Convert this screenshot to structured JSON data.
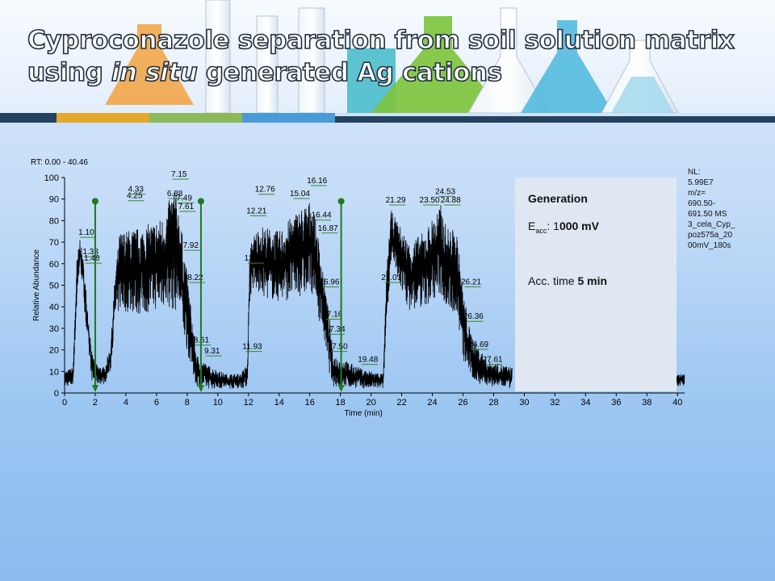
{
  "slide": {
    "title_line1": "Cyproconazole separation from soil solution matrix",
    "title_line2_pre": "using ",
    "title_line2_em": "in situ",
    "title_line2_post": " generated Ag cations"
  },
  "colors": {
    "accent_bars": [
      "#24425f",
      "#e4a82a",
      "#8cb85c",
      "#4a9ad8",
      "#24425f"
    ],
    "trace": "#000000",
    "markers": "#1d7a1d",
    "peak_label_tick": "#2e8b2e"
  },
  "info": {
    "line1": "Generation",
    "line2_pre": "E",
    "line2_sub": "acc",
    "line2_mid": ": 1",
    "line2_bold": "000 mV",
    "line3_pre": "Acc. time ",
    "line3_bold": "5 min"
  },
  "nl_note": "NL:\n5.99E7\nm/z=\n690.50-\n691.50 MS\n3_cela_Cyp_\npoz575a_20\n00mV_180s",
  "chart_data": {
    "type": "line",
    "rt_range_label": "RT:  0.00 - 40.46",
    "xlabel": "Time (min)",
    "ylabel": "Relative Abundance",
    "xlim": [
      0,
      40.46
    ],
    "ylim": [
      0,
      100
    ],
    "xticks": [
      0,
      2,
      4,
      6,
      8,
      10,
      12,
      14,
      16,
      18,
      20,
      22,
      24,
      26,
      28,
      30,
      32,
      34,
      36,
      38,
      40
    ],
    "yticks": [
      0,
      10,
      20,
      30,
      40,
      50,
      60,
      70,
      80,
      90,
      100
    ],
    "data_range": [
      0,
      29.2
    ],
    "tail_range": [
      39.3,
      40.46
    ],
    "envelope": [
      [
        0.0,
        3,
        10
      ],
      [
        0.55,
        3,
        12
      ],
      [
        0.8,
        40,
        62
      ],
      [
        1.0,
        60,
        72
      ],
      [
        1.2,
        48,
        63
      ],
      [
        1.45,
        25,
        45
      ],
      [
        1.8,
        5,
        18
      ],
      [
        2.1,
        4,
        13
      ],
      [
        2.6,
        4,
        12
      ],
      [
        3.0,
        10,
        22
      ],
      [
        3.3,
        34,
        56
      ],
      [
        3.6,
        38,
        75
      ],
      [
        5.0,
        36,
        77
      ],
      [
        6.5,
        40,
        82
      ],
      [
        7.15,
        38,
        97
      ],
      [
        7.49,
        38,
        85
      ],
      [
        7.61,
        30,
        78
      ],
      [
        7.92,
        22,
        60
      ],
      [
        8.22,
        12,
        42
      ],
      [
        8.61,
        3,
        18
      ],
      [
        9.31,
        2,
        13
      ],
      [
        10.5,
        2,
        9
      ],
      [
        11.5,
        2,
        9
      ],
      [
        11.93,
        3,
        14
      ],
      [
        12.07,
        40,
        62
      ],
      [
        12.21,
        48,
        72
      ],
      [
        12.76,
        45,
        78
      ],
      [
        14.0,
        42,
        75
      ],
      [
        15.04,
        44,
        84
      ],
      [
        16.16,
        46,
        90
      ],
      [
        16.44,
        38,
        78
      ],
      [
        16.87,
        28,
        58
      ],
      [
        17.16,
        12,
        42
      ],
      [
        17.34,
        8,
        32
      ],
      [
        17.5,
        3,
        18
      ],
      [
        19.48,
        2,
        11
      ],
      [
        20.8,
        2,
        9
      ],
      [
        21.0,
        30,
        55
      ],
      [
        21.29,
        60,
        85
      ],
      [
        22.5,
        38,
        70
      ],
      [
        23.5,
        40,
        75
      ],
      [
        24.53,
        45,
        88
      ],
      [
        24.88,
        40,
        78
      ],
      [
        25.6,
        36,
        75
      ],
      [
        26.0,
        15,
        48
      ],
      [
        26.21,
        12,
        40
      ],
      [
        26.36,
        10,
        32
      ],
      [
        26.69,
        5,
        25
      ],
      [
        27.61,
        3,
        15
      ],
      [
        29.2,
        2,
        12
      ]
    ],
    "tail_envelope": [
      [
        39.3,
        3,
        8
      ],
      [
        40.46,
        3,
        9
      ]
    ],
    "peak_labels": [
      {
        "t": "1.10",
        "x": 1.1,
        "y": 73
      },
      {
        "t": "1.38",
        "x": 1.38,
        "y": 64
      },
      {
        "t": "1.46",
        "x": 1.46,
        "y": 61
      },
      {
        "t": "4.25",
        "x": 4.25,
        "y": 90
      },
      {
        "t": "4.33",
        "x": 4.33,
        "y": 93
      },
      {
        "t": "6.88",
        "x": 6.88,
        "y": 91
      },
      {
        "t": "7.15",
        "x": 7.15,
        "y": 100
      },
      {
        "t": "7.49",
        "x": 7.49,
        "y": 89
      },
      {
        "t": "7.61",
        "x": 7.61,
        "y": 85
      },
      {
        "t": "7.92",
        "x": 7.92,
        "y": 67
      },
      {
        "t": "8.22",
        "x": 8.22,
        "y": 52
      },
      {
        "t": "8.61",
        "x": 8.61,
        "y": 23
      },
      {
        "t": "9.31",
        "x": 9.31,
        "y": 18
      },
      {
        "t": "11.93",
        "x": 11.93,
        "y": 20
      },
      {
        "t": "12.07",
        "x": 12.07,
        "y": 61
      },
      {
        "t": "12.21",
        "x": 12.21,
        "y": 83
      },
      {
        "t": "12.76",
        "x": 12.76,
        "y": 93
      },
      {
        "t": "15.04",
        "x": 15.04,
        "y": 91
      },
      {
        "t": "16.16",
        "x": 16.16,
        "y": 97
      },
      {
        "t": "16.44",
        "x": 16.44,
        "y": 81
      },
      {
        "t": "16.87",
        "x": 16.87,
        "y": 75
      },
      {
        "t": "16.96",
        "x": 16.96,
        "y": 50
      },
      {
        "t": "17.16",
        "x": 17.16,
        "y": 35
      },
      {
        "t": "17.34",
        "x": 17.34,
        "y": 28
      },
      {
        "t": "17.50",
        "x": 17.5,
        "y": 20
      },
      {
        "t": "19.48",
        "x": 19.48,
        "y": 14
      },
      {
        "t": "21.01",
        "x": 21.01,
        "y": 52
      },
      {
        "t": "21.29",
        "x": 21.29,
        "y": 88
      },
      {
        "t": "23.50",
        "x": 23.5,
        "y": 88
      },
      {
        "t": "24.53",
        "x": 24.53,
        "y": 92
      },
      {
        "t": "24.88",
        "x": 24.88,
        "y": 88
      },
      {
        "t": "26.21",
        "x": 26.21,
        "y": 50
      },
      {
        "t": "26.36",
        "x": 26.36,
        "y": 34
      },
      {
        "t": "26.69",
        "x": 26.69,
        "y": 21
      },
      {
        "t": "27.61",
        "x": 27.61,
        "y": 14
      }
    ],
    "markers": [
      {
        "x": 2.0,
        "y_top": 89
      },
      {
        "x": 8.9,
        "y_top": 89
      },
      {
        "x": 18.05,
        "y_top": 89
      }
    ]
  }
}
